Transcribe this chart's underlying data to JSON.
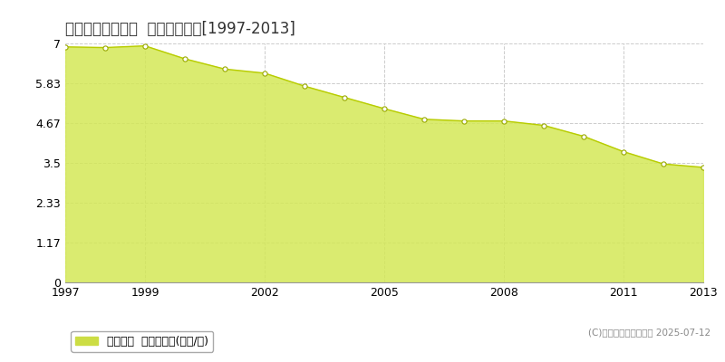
{
  "title": "札幌市豊平区西岡  基準地価推移[1997-2013]",
  "years": [
    1997,
    1998,
    1999,
    2000,
    2001,
    2002,
    2003,
    2004,
    2005,
    2006,
    2007,
    2008,
    2009,
    2010,
    2011,
    2012,
    2013
  ],
  "values": [
    6.9,
    6.88,
    6.93,
    6.55,
    6.25,
    6.13,
    5.75,
    5.42,
    5.09,
    4.78,
    4.73,
    4.73,
    4.6,
    4.28,
    3.83,
    3.47,
    3.37
  ],
  "ylim": [
    0,
    7
  ],
  "yticks": [
    0,
    1.17,
    2.33,
    3.5,
    4.67,
    5.83,
    7
  ],
  "ytick_labels": [
    "0",
    "1.17",
    "2.33",
    "3.5",
    "4.67",
    "5.83",
    "7"
  ],
  "xticks": [
    1997,
    1999,
    2002,
    2005,
    2008,
    2011,
    2013
  ],
  "fill_color": "#d4e857",
  "line_color": "#b8cc00",
  "marker_facecolor": "white",
  "marker_edgecolor": "#9aaa00",
  "grid_color": "#cccccc",
  "bg_color": "#ffffff",
  "plot_bg_color": "#ffffff",
  "legend_label": "基準地価  平均坪単価(万円/坪)",
  "legend_color": "#ccdd44",
  "copyright_text": "(C)土地価格ドットコム 2025-07-12",
  "title_fontsize": 12,
  "tick_fontsize": 9,
  "legend_fontsize": 9
}
